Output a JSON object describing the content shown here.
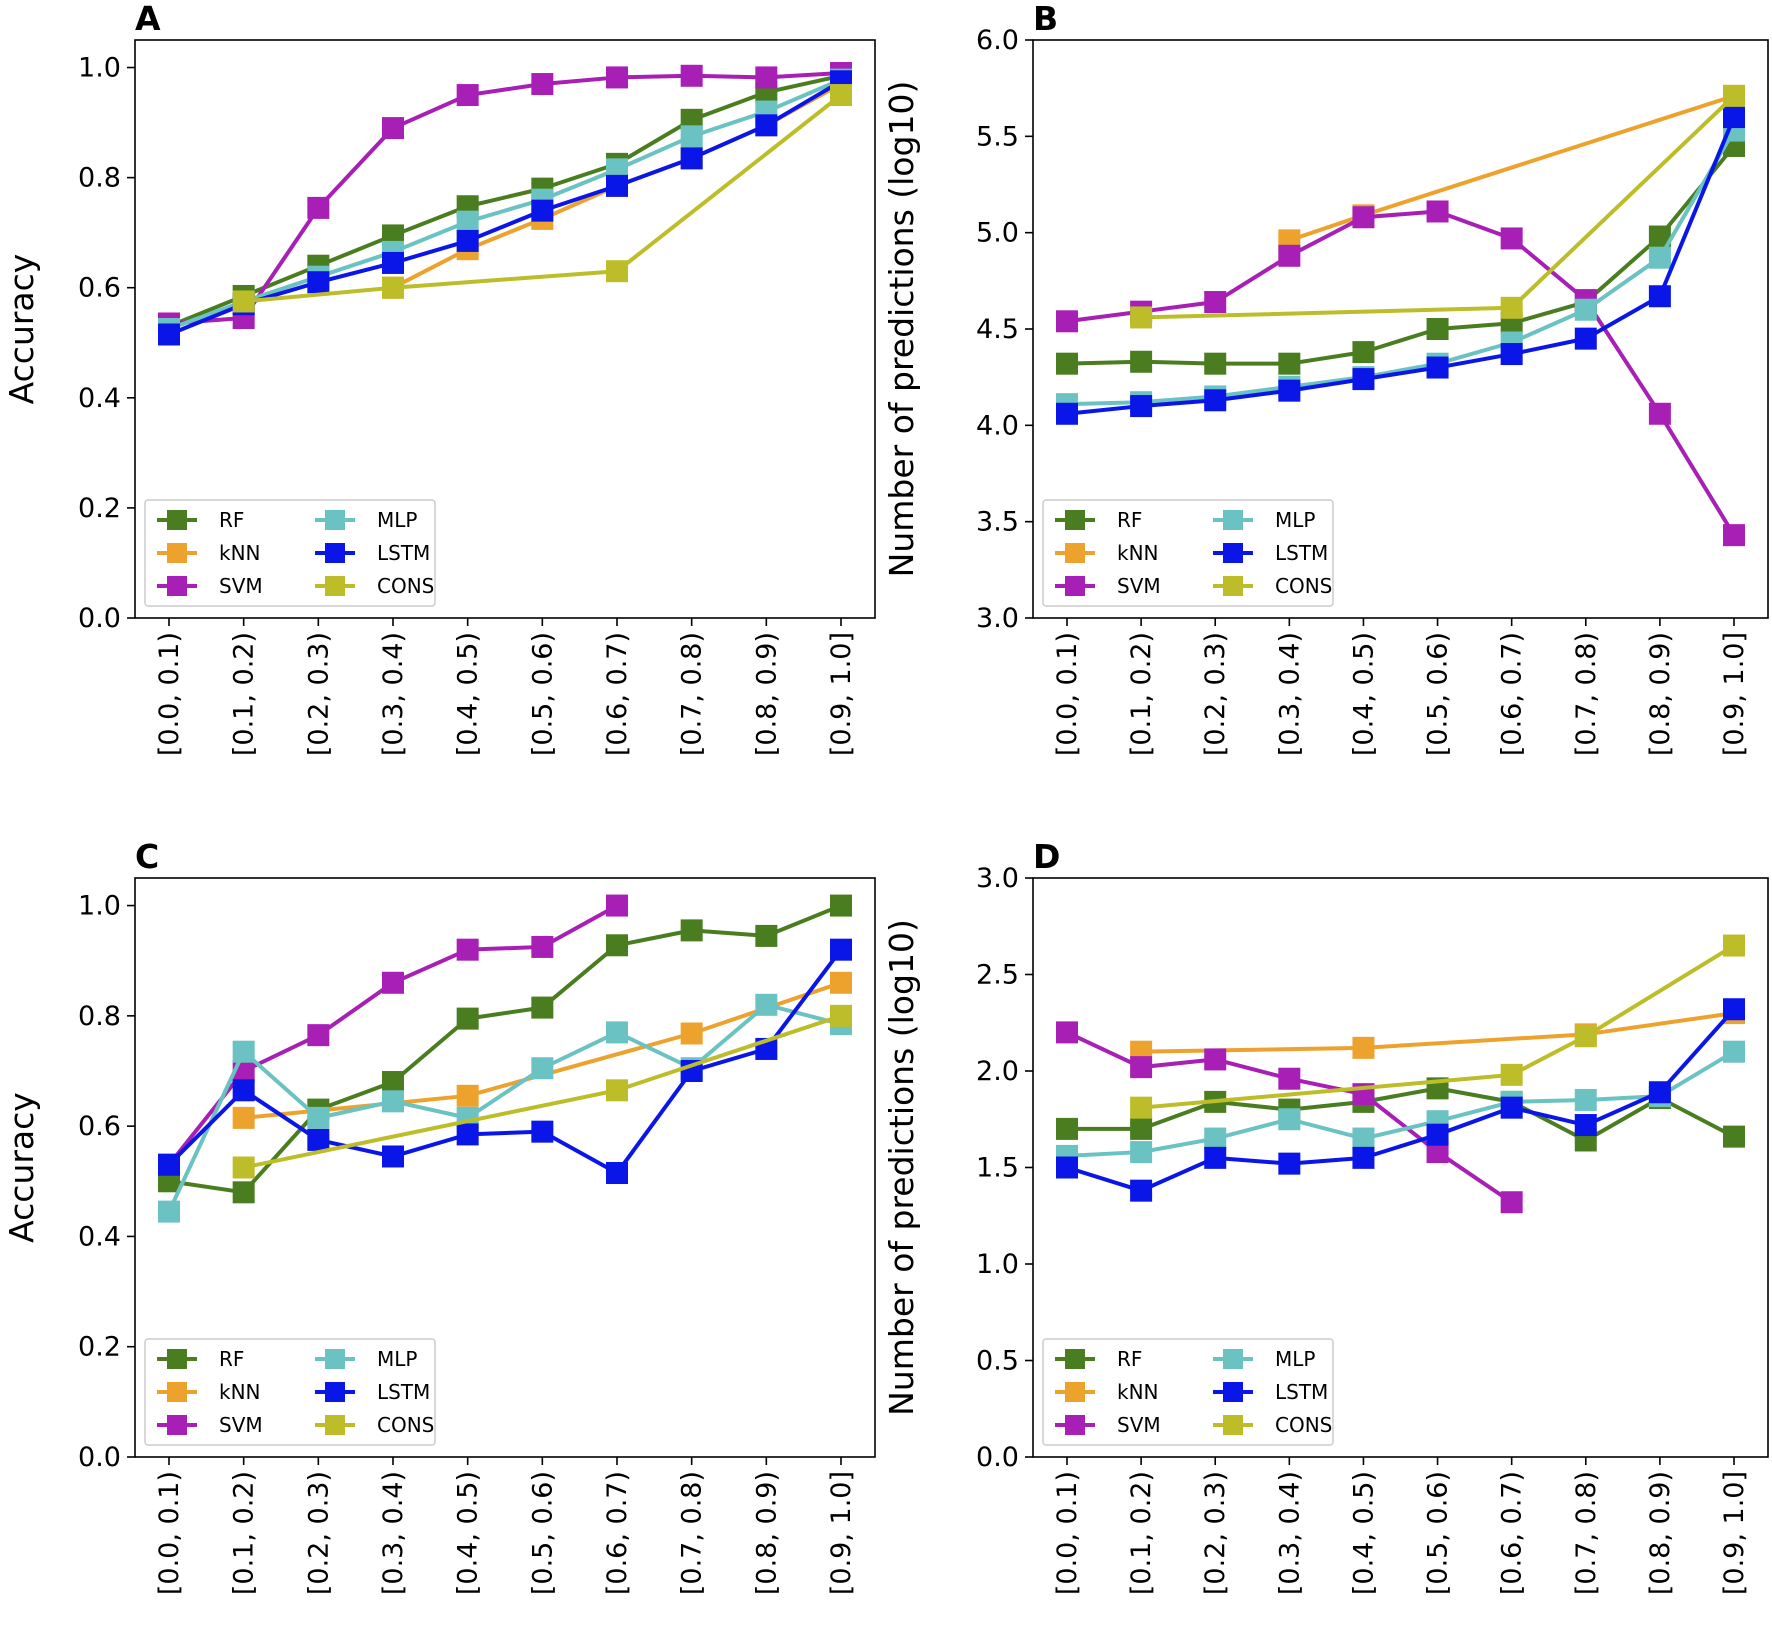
{
  "colors": {
    "RF": "#4a7d1f",
    "kNN": "#eea22e",
    "SVM": "#a81fb6",
    "MLP": "#6bc2c2",
    "LSTM": "#0a16e8",
    "CONS": "#bdbd2a"
  },
  "chart_data": [
    {
      "panel": "A",
      "type": "line",
      "ylabel": "Accuracy",
      "ylim": [
        0.0,
        1.05
      ],
      "yticks": [
        "0.0",
        "0.2",
        "0.4",
        "0.6",
        "0.8",
        "1.0"
      ],
      "categories": [
        "[0.0, 0.1)",
        "[0.1, 0.2)",
        "[0.2, 0.3)",
        "[0.3, 0.4)",
        "[0.4, 0.5)",
        "[0.5, 0.6)",
        "[0.6, 0.7)",
        "[0.7, 0.8)",
        "[0.8, 0.9)",
        "[0.9, 1.0]"
      ],
      "legend": [
        "RF",
        "kNN",
        "SVM",
        "MLP",
        "LSTM",
        "CONS"
      ],
      "series": [
        {
          "name": "RF",
          "values": [
            0.53,
            0.585,
            0.64,
            0.695,
            0.748,
            0.78,
            0.825,
            0.905,
            0.955,
            0.985
          ]
        },
        {
          "name": "kNN",
          "values": [
            null,
            null,
            null,
            0.6,
            0.67,
            0.725,
            0.785,
            0.835,
            0.895,
            0.97
          ]
        },
        {
          "name": "SVM",
          "values": [
            0.535,
            0.545,
            0.745,
            0.89,
            0.95,
            0.97,
            0.982,
            0.985,
            0.982,
            0.99
          ]
        },
        {
          "name": "MLP",
          "values": [
            0.525,
            0.575,
            0.62,
            0.665,
            0.72,
            0.76,
            0.815,
            0.875,
            0.92,
            0.978
          ]
        },
        {
          "name": "LSTM",
          "values": [
            0.515,
            0.57,
            0.61,
            0.645,
            0.685,
            0.74,
            0.785,
            0.835,
            0.895,
            0.975
          ]
        },
        {
          "name": "CONS",
          "values": [
            null,
            0.575,
            null,
            0.6,
            null,
            null,
            0.63,
            null,
            null,
            0.95
          ]
        }
      ]
    },
    {
      "panel": "B",
      "type": "line",
      "ylabel": "Number of predictions (log10)",
      "ylim": [
        3.0,
        6.0
      ],
      "yticks": [
        "3.0",
        "3.5",
        "4.0",
        "4.5",
        "5.0",
        "5.5",
        "6.0"
      ],
      "categories": [
        "[0.0, 0.1)",
        "[0.1, 0.2)",
        "[0.2, 0.3)",
        "[0.3, 0.4)",
        "[0.4, 0.5)",
        "[0.5, 0.6)",
        "[0.6, 0.7)",
        "[0.7, 0.8)",
        "[0.8, 0.9)",
        "[0.9, 1.0]"
      ],
      "legend": [
        "RF",
        "kNN",
        "SVM",
        "MLP",
        "LSTM",
        "CONS"
      ],
      "series": [
        {
          "name": "RF",
          "values": [
            4.32,
            4.33,
            4.32,
            4.32,
            4.38,
            4.5,
            4.53,
            4.64,
            4.98,
            5.45
          ]
        },
        {
          "name": "kNN",
          "values": [
            null,
            null,
            null,
            4.96,
            5.09,
            null,
            null,
            null,
            null,
            5.71
          ]
        },
        {
          "name": "SVM",
          "values": [
            4.54,
            4.59,
            4.64,
            4.88,
            5.08,
            5.11,
            4.97,
            4.65,
            4.06,
            3.43
          ]
        },
        {
          "name": "MLP",
          "values": [
            4.11,
            4.12,
            4.15,
            4.2,
            4.25,
            4.32,
            4.43,
            4.6,
            4.87,
            5.53
          ]
        },
        {
          "name": "LSTM",
          "values": [
            4.06,
            4.1,
            4.13,
            4.18,
            4.24,
            4.3,
            4.37,
            4.45,
            4.67,
            5.6
          ]
        },
        {
          "name": "CONS",
          "values": [
            null,
            4.56,
            null,
            null,
            null,
            null,
            4.61,
            null,
            null,
            5.71
          ]
        }
      ]
    },
    {
      "panel": "C",
      "type": "line",
      "ylabel": "Accuracy",
      "ylim": [
        0.0,
        1.05
      ],
      "yticks": [
        "0.0",
        "0.2",
        "0.4",
        "0.6",
        "0.8",
        "1.0"
      ],
      "categories": [
        "[0.0, 0.1)",
        "[0.1, 0.2)",
        "[0.2, 0.3)",
        "[0.3, 0.4)",
        "[0.4, 0.5)",
        "[0.5, 0.6)",
        "[0.6, 0.7)",
        "[0.7, 0.8)",
        "[0.8, 0.9)",
        "[0.9, 1.0]"
      ],
      "legend": [
        "RF",
        "kNN",
        "SVM",
        "MLP",
        "LSTM",
        "CONS"
      ],
      "series": [
        {
          "name": "RF",
          "values": [
            0.5,
            0.48,
            0.63,
            0.68,
            0.795,
            0.815,
            0.928,
            0.955,
            0.945,
            1.0
          ]
        },
        {
          "name": "kNN",
          "values": [
            null,
            0.615,
            null,
            null,
            0.655,
            null,
            null,
            0.768,
            null,
            0.86
          ]
        },
        {
          "name": "SVM",
          "values": [
            0.53,
            0.7,
            0.765,
            0.86,
            0.92,
            0.925,
            1.0,
            null,
            null,
            null
          ]
        },
        {
          "name": "MLP",
          "values": [
            0.445,
            0.735,
            0.615,
            0.645,
            0.615,
            0.705,
            0.77,
            0.705,
            0.82,
            0.785
          ]
        },
        {
          "name": "LSTM",
          "values": [
            0.53,
            0.665,
            0.575,
            0.545,
            0.585,
            0.59,
            0.515,
            0.7,
            0.74,
            0.92
          ]
        },
        {
          "name": "CONS",
          "values": [
            null,
            0.525,
            null,
            null,
            null,
            null,
            0.665,
            null,
            null,
            0.8
          ]
        }
      ]
    },
    {
      "panel": "D",
      "type": "line",
      "ylabel": "Number of predictions (log10)",
      "ylim": [
        0.0,
        3.0
      ],
      "yticks": [
        "0.0",
        "0.5",
        "1.0",
        "1.5",
        "2.0",
        "2.5",
        "3.0"
      ],
      "categories": [
        "[0.0, 0.1)",
        "[0.1, 0.2)",
        "[0.2, 0.3)",
        "[0.3, 0.4)",
        "[0.4, 0.5)",
        "[0.5, 0.6)",
        "[0.6, 0.7)",
        "[0.7, 0.8)",
        "[0.8, 0.9)",
        "[0.9, 1.0]"
      ],
      "legend": [
        "RF",
        "kNN",
        "SVM",
        "MLP",
        "LSTM",
        "CONS"
      ],
      "series": [
        {
          "name": "RF",
          "values": [
            1.7,
            1.7,
            1.84,
            1.8,
            1.84,
            1.91,
            1.84,
            1.64,
            1.86,
            1.66
          ]
        },
        {
          "name": "kNN",
          "values": [
            null,
            2.1,
            null,
            null,
            2.12,
            null,
            null,
            2.19,
            null,
            2.3
          ]
        },
        {
          "name": "SVM",
          "values": [
            2.2,
            2.02,
            2.06,
            1.96,
            1.88,
            1.58,
            1.32,
            null,
            null,
            null
          ]
        },
        {
          "name": "MLP",
          "values": [
            1.56,
            1.58,
            1.65,
            1.75,
            1.65,
            1.74,
            1.84,
            1.85,
            1.87,
            2.1
          ]
        },
        {
          "name": "LSTM",
          "values": [
            1.5,
            1.38,
            1.55,
            1.52,
            1.55,
            1.67,
            1.81,
            1.72,
            1.89,
            2.32
          ]
        },
        {
          "name": "CONS",
          "values": [
            null,
            1.81,
            null,
            null,
            null,
            null,
            1.98,
            2.18,
            null,
            2.65
          ]
        }
      ]
    }
  ]
}
